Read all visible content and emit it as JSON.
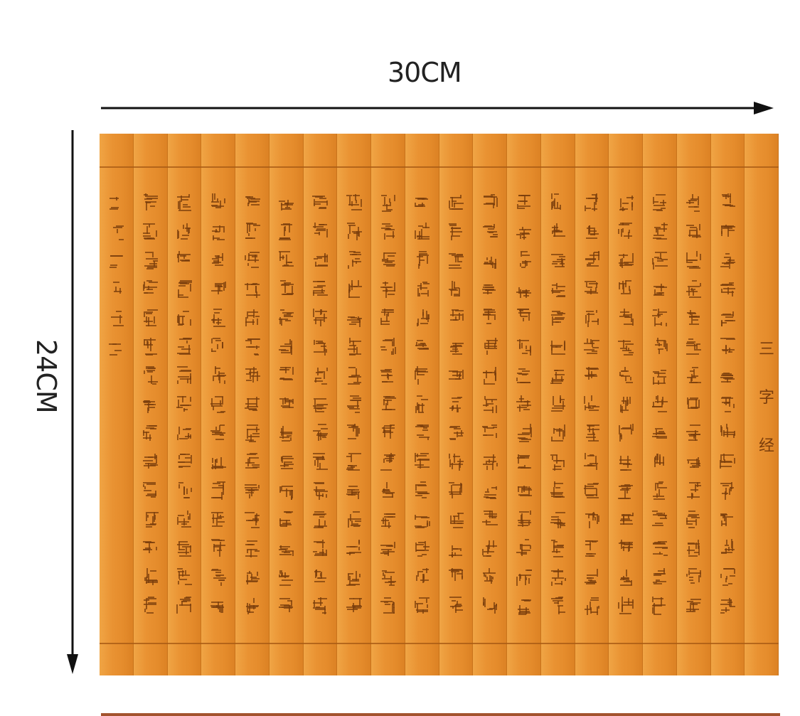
{
  "dimensions": {
    "width_label": "30CM",
    "height_label": "24CM"
  },
  "scroll": {
    "title": "三字经",
    "slat_count": 20,
    "colors": {
      "bamboo": "#e8922e",
      "ink": "#7a3d0c",
      "arrow": "#111111"
    }
  }
}
